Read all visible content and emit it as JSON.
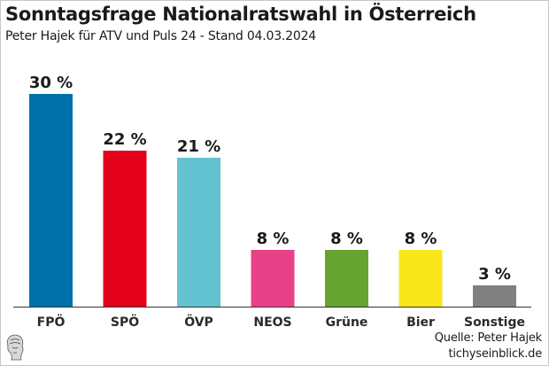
{
  "chart_data": {
    "type": "bar",
    "title": "Sonntagsfrage Nationalratswahl in Österreich",
    "subtitle": "Peter Hajek für ATV und Puls 24 - Stand 04.03.2024",
    "categories": [
      "FPÖ",
      "SPÖ",
      "ÖVP",
      "NEOS",
      "Grüne",
      "Bier",
      "Sonstige"
    ],
    "values": [
      30,
      22,
      21,
      8,
      8,
      8,
      3
    ],
    "value_labels": [
      "30 %",
      "22 %",
      "21 %",
      "8 %",
      "8 %",
      "8 %",
      "3 %"
    ],
    "colors": [
      "#0070A8",
      "#E3001B",
      "#63C3D0",
      "#E84188",
      "#67A331",
      "#F9E61B",
      "#808080"
    ],
    "xlabel": "",
    "ylabel": "",
    "ylim": [
      0,
      30
    ],
    "grid": false,
    "legend": "none"
  },
  "footer": {
    "source_line1": "Quelle: Peter Hajek",
    "source_line2": "tichyseinblick.de",
    "logo_icon": "tichys-einblick-logo-icon"
  }
}
